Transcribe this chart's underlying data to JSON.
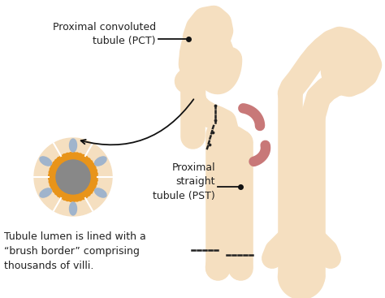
{
  "bg_color": "#ffffff",
  "tubule_color": "#f5dfc0",
  "red_vessel_color": "#c87878",
  "dashed_color": "#222222",
  "arrow_color": "#111111",
  "label_color": "#222222",
  "cell_outer_color": "#f5dfc0",
  "cell_ring_color": "#e8941a",
  "cell_nucleus_color": "#888888",
  "cell_oval_color": "#a0b4cc",
  "label_pct": "Proximal convoluted\ntubule (PCT)",
  "label_pst": "Proximal\nstraight\ntubule (PST)",
  "label_brush": "Tubule lumen is lined with a\n“brush border” comprising\nthousands of villi.",
  "font_size_label": 9,
  "font_size_brush": 9
}
